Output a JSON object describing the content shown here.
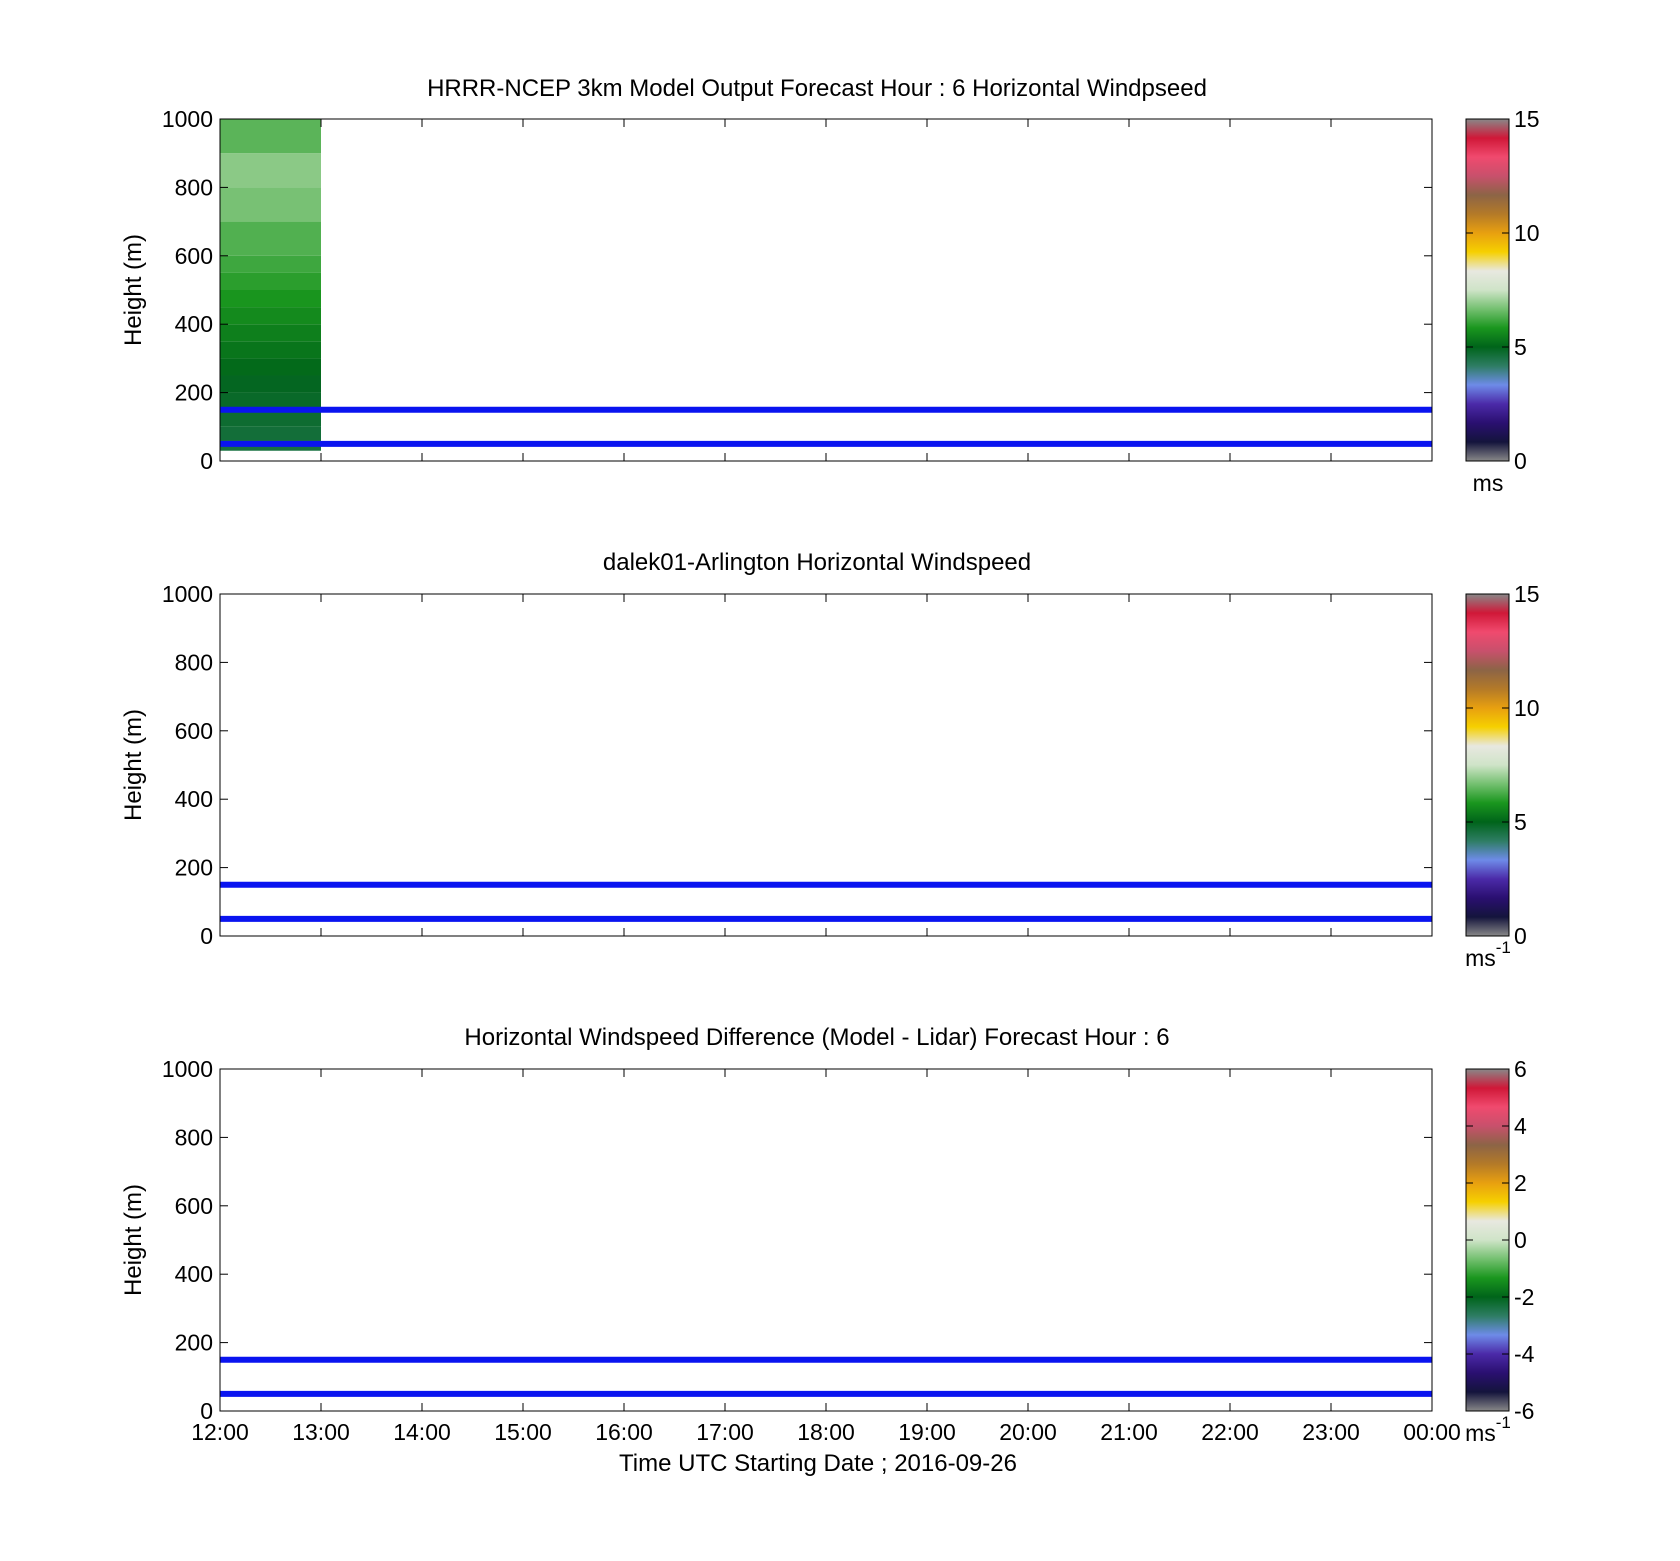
{
  "colors": {
    "ref_line": "#0a14f0",
    "axes": "#000000",
    "colormap": [
      "#888888",
      "#14143c",
      "#2a0f70",
      "#4b2aa8",
      "#6e8be8",
      "#2e7d64",
      "#00641a",
      "#1a961e",
      "#74c070",
      "#cfe4c8",
      "#e8e8e0",
      "#f6d000",
      "#e8a010",
      "#b47a28",
      "#8c6446",
      "#c8506c",
      "#f04a6e",
      "#d01838",
      "#888888"
    ]
  },
  "chart_data": [
    {
      "type": "heatmap",
      "title": "HRRR-NCEP 3km Model Output   Forecast Hour : 6 Horizontal Windpseed",
      "ylabel": "Height (m)",
      "ylim": [
        0,
        1000
      ],
      "yticks": [
        "0",
        "200",
        "400",
        "600",
        "800",
        "1000"
      ],
      "xlim": [
        0,
        12
      ],
      "xticks": [
        "12:00",
        "13:00",
        "14:00",
        "15:00",
        "16:00",
        "17:00",
        "18:00",
        "19:00",
        "20:00",
        "21:00",
        "22:00",
        "23:00",
        "00:00"
      ],
      "show_xtick_labels": false,
      "ref_lines": [
        50,
        150
      ],
      "colorbar": {
        "min": 0,
        "max": 15,
        "ticks": [
          "0",
          "5",
          "10",
          "15"
        ],
        "tick_values": [
          0,
          5,
          10,
          15
        ],
        "unit": "ms",
        "unit_sup": ""
      },
      "cells": [
        {
          "x0": 0,
          "x1": 1,
          "y0": 30,
          "y1": 60,
          "value": 4.2
        },
        {
          "x0": 0,
          "x1": 1,
          "y0": 60,
          "y1": 100,
          "value": 4.3
        },
        {
          "x0": 0,
          "x1": 1,
          "y0": 100,
          "y1": 150,
          "value": 4.4
        },
        {
          "x0": 0,
          "x1": 1,
          "y0": 150,
          "y1": 200,
          "value": 4.5
        },
        {
          "x0": 0,
          "x1": 1,
          "y0": 200,
          "y1": 250,
          "value": 4.6
        },
        {
          "x0": 0,
          "x1": 1,
          "y0": 250,
          "y1": 300,
          "value": 4.8
        },
        {
          "x0": 0,
          "x1": 1,
          "y0": 300,
          "y1": 350,
          "value": 5.0
        },
        {
          "x0": 0,
          "x1": 1,
          "y0": 350,
          "y1": 400,
          "value": 5.2
        },
        {
          "x0": 0,
          "x1": 1,
          "y0": 400,
          "y1": 450,
          "value": 5.4
        },
        {
          "x0": 0,
          "x1": 1,
          "y0": 450,
          "y1": 500,
          "value": 5.6
        },
        {
          "x0": 0,
          "x1": 1,
          "y0": 500,
          "y1": 550,
          "value": 5.8
        },
        {
          "x0": 0,
          "x1": 1,
          "y0": 550,
          "y1": 600,
          "value": 6.0
        },
        {
          "x0": 0,
          "x1": 1,
          "y0": 600,
          "y1": 700,
          "value": 6.2
        },
        {
          "x0": 0,
          "x1": 1,
          "y0": 700,
          "y1": 800,
          "value": 6.6
        },
        {
          "x0": 0,
          "x1": 1,
          "y0": 800,
          "y1": 900,
          "value": 6.8
        },
        {
          "x0": 0,
          "x1": 1,
          "y0": 900,
          "y1": 1000,
          "value": 6.3
        }
      ]
    },
    {
      "type": "heatmap",
      "title": "dalek01-Arlington  Horizontal Windspeed",
      "ylabel": "Height (m)",
      "ylim": [
        0,
        1000
      ],
      "yticks": [
        "0",
        "200",
        "400",
        "600",
        "800",
        "1000"
      ],
      "xlim": [
        0,
        12
      ],
      "xticks": [
        "12:00",
        "13:00",
        "14:00",
        "15:00",
        "16:00",
        "17:00",
        "18:00",
        "19:00",
        "20:00",
        "21:00",
        "22:00",
        "23:00",
        "00:00"
      ],
      "show_xtick_labels": false,
      "ref_lines": [
        50,
        150
      ],
      "colorbar": {
        "min": 0,
        "max": 15,
        "ticks": [
          "0",
          "5",
          "10",
          "15"
        ],
        "tick_values": [
          0,
          5,
          10,
          15
        ],
        "unit": "ms",
        "unit_sup": "-1"
      },
      "cells": []
    },
    {
      "type": "heatmap",
      "title": "Horizontal Windspeed Difference (Model - Lidar) Forecast Hour : 6",
      "ylabel": "Height (m)",
      "xlabel": "Time UTC  Starting Date ; 2016-09-26",
      "ylim": [
        0,
        1000
      ],
      "yticks": [
        "0",
        "200",
        "400",
        "600",
        "800",
        "1000"
      ],
      "xlim": [
        0,
        12
      ],
      "xticks": [
        "12:00",
        "13:00",
        "14:00",
        "15:00",
        "16:00",
        "17:00",
        "18:00",
        "19:00",
        "20:00",
        "21:00",
        "22:00",
        "23:00",
        "00:00"
      ],
      "show_xtick_labels": true,
      "ref_lines": [
        50,
        150
      ],
      "colorbar": {
        "min": -6,
        "max": 6,
        "ticks": [
          "-6",
          "-4",
          "-2",
          "0",
          "2",
          "4",
          "6"
        ],
        "tick_values": [
          -6,
          -4,
          -2,
          0,
          2,
          4,
          6
        ],
        "unit": "ms",
        "unit_sup": "-1"
      },
      "cells": []
    }
  ]
}
